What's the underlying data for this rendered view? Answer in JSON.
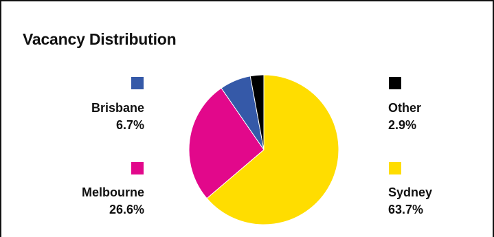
{
  "chart_data": {
    "type": "pie",
    "title": "Vacancy Distribution",
    "slices": [
      {
        "name": "Sydney",
        "value": 63.7,
        "label": "63.7%",
        "color": "#FFDD00"
      },
      {
        "name": "Melbourne",
        "value": 26.6,
        "label": "26.6%",
        "color": "#E2088B"
      },
      {
        "name": "Brisbane",
        "value": 6.7,
        "label": "6.7%",
        "color": "#3559A8"
      },
      {
        "name": "Other",
        "value": 2.9,
        "label": "2.9%",
        "color": "#000000"
      }
    ],
    "legend_placement": "left-and-right"
  }
}
